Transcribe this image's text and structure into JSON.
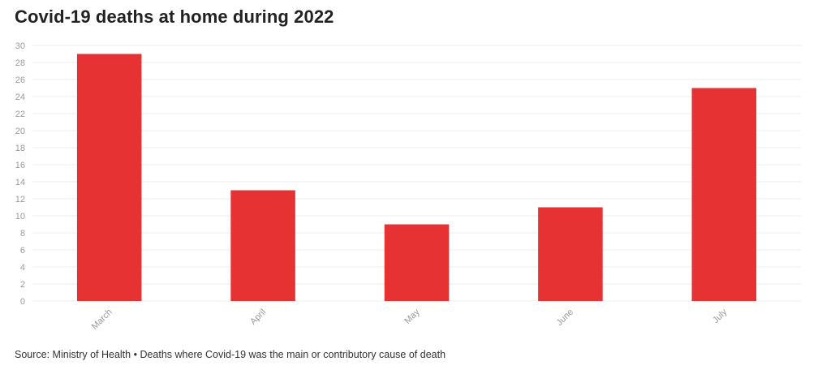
{
  "colors": {
    "bar": "#e63232",
    "grid": "#ececec",
    "axis_text": "#9a9a9a"
  },
  "footer": {
    "source": "Source: Ministry of Health",
    "separator": " • ",
    "note": "Deaths where Covid-19 was the main or contributory cause of death"
  },
  "chart_data": {
    "type": "bar",
    "title": "Covid-19 deaths at home during 2022",
    "categories": [
      "March",
      "April",
      "May",
      "June",
      "July"
    ],
    "values": [
      29,
      13,
      9,
      11,
      25
    ],
    "ylim": [
      0,
      30
    ],
    "yticks": [
      0,
      2,
      4,
      6,
      8,
      10,
      12,
      14,
      16,
      18,
      20,
      22,
      24,
      26,
      28,
      30
    ],
    "grid": true,
    "legend": "none",
    "xlabel": "",
    "ylabel": ""
  }
}
